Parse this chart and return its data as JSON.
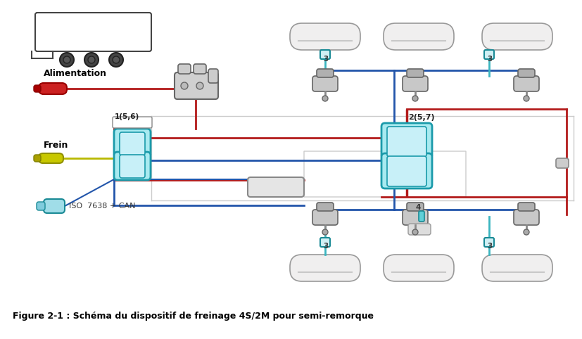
{
  "title": "Figure 2-1 : Schéma du dispositif de freinage 4S/2M pour semi-remorque",
  "title_fontsize": 9,
  "title_color": "#000000",
  "bg_color": "#ffffff",
  "label_alimentation": "Alimentation",
  "label_frein": "Frein",
  "label_iso": "ISO  7638 + CAN",
  "label_1": "1(5,6)",
  "label_2": "2(5,7)",
  "label_3": "3",
  "label_4": "4",
  "color_red": "#b31b1b",
  "color_blue": "#2255aa",
  "color_teal": "#3ab5c0",
  "color_teal_dark": "#1a8a95",
  "color_yellow_green": "#b8b800",
  "color_gray_dark": "#444444",
  "color_gray_mid": "#888888",
  "color_gray_light": "#cccccc",
  "color_tank_fill": "#f0efef",
  "color_tank_edge": "#999999",
  "color_abs_fill": "#a8eaf0",
  "color_abs_edge": "#1a9aaa",
  "color_box_fill": "#e8e8e8",
  "color_box_edge": "#888888"
}
